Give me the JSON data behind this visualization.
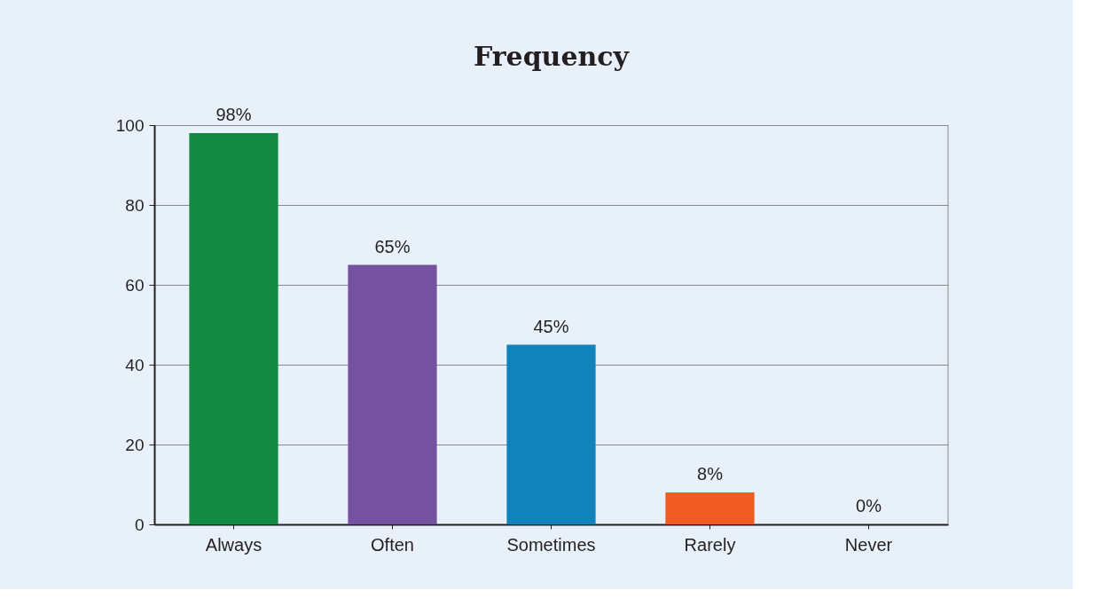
{
  "chart_data": {
    "type": "bar",
    "title": "Frequency",
    "categories": [
      "Always",
      "Often",
      "Sometimes",
      "Rarely",
      "Never"
    ],
    "values": [
      98,
      65,
      45,
      8,
      0
    ],
    "colors": [
      "#138a43",
      "#7452a0",
      "#1282bb",
      "#f15a22",
      "#d2232a"
    ],
    "value_labels": [
      "98%",
      "65%",
      "45%",
      "8%",
      "0%"
    ],
    "ylim": [
      0,
      100
    ],
    "yticks": [
      0,
      20,
      40,
      60,
      80,
      100
    ],
    "grid": "y",
    "legend": false
  }
}
